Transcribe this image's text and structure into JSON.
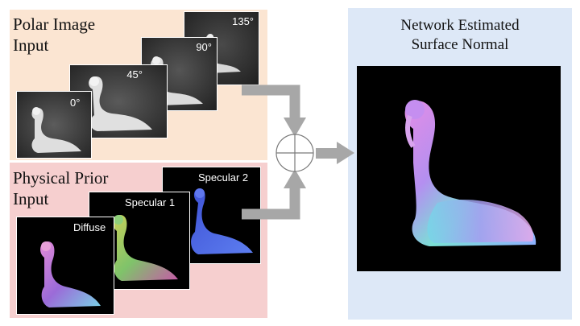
{
  "polar": {
    "title_line1": "Polar Image",
    "title_line2": "Input",
    "angles": [
      "0°",
      "45°",
      "90°",
      "135°"
    ]
  },
  "prior": {
    "title_line1": "Physical Prior",
    "title_line2": "Input",
    "labels": [
      "Diffuse",
      "Specular 1",
      "Specular 2"
    ]
  },
  "output": {
    "title_line1": "Network Estimated",
    "title_line2": "Surface Normal"
  },
  "colors": {
    "polar_bg": "#fbe5d2",
    "prior_bg": "#f6cfcf",
    "output_bg": "#dde8f7",
    "arrow": "#a7a7a7"
  }
}
